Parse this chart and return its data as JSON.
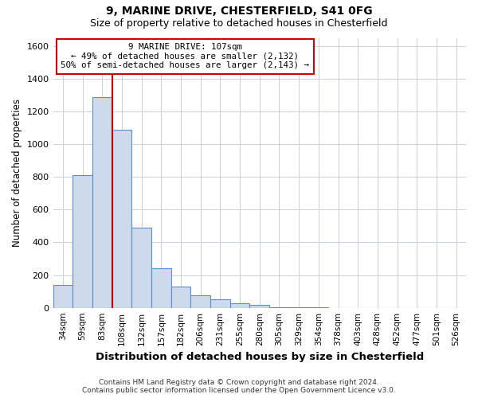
{
  "title1": "9, MARINE DRIVE, CHESTERFIELD, S41 0FG",
  "title2": "Size of property relative to detached houses in Chesterfield",
  "xlabel": "Distribution of detached houses by size in Chesterfield",
  "ylabel": "Number of detached properties",
  "footer1": "Contains HM Land Registry data © Crown copyright and database right 2024.",
  "footer2": "Contains public sector information licensed under the Open Government Licence v3.0.",
  "categories": [
    "34sqm",
    "59sqm",
    "83sqm",
    "108sqm",
    "132sqm",
    "157sqm",
    "182sqm",
    "206sqm",
    "231sqm",
    "255sqm",
    "280sqm",
    "305sqm",
    "329sqm",
    "354sqm",
    "378sqm",
    "403sqm",
    "428sqm",
    "452sqm",
    "477sqm",
    "501sqm",
    "526sqm"
  ],
  "values": [
    140,
    810,
    1290,
    1090,
    490,
    240,
    130,
    75,
    50,
    30,
    18,
    5,
    2,
    1,
    0,
    0,
    0,
    0,
    0,
    0,
    0
  ],
  "bar_color": "#ccdaeb",
  "bar_edge_color": "#5b8fc9",
  "red_line_x": 2.5,
  "annotation_line1": "9 MARINE DRIVE: 107sqm",
  "annotation_line2": "← 49% of detached houses are smaller (2,132)",
  "annotation_line3": "50% of semi-detached houses are larger (2,143) →",
  "annotation_box_color": "#ffffff",
  "annotation_box_edge": "#cc0000",
  "ylim": [
    0,
    1650
  ],
  "yticks": [
    0,
    200,
    400,
    600,
    800,
    1000,
    1200,
    1400,
    1600
  ],
  "background_color": "#ffffff",
  "grid_color": "#c8d0dc"
}
